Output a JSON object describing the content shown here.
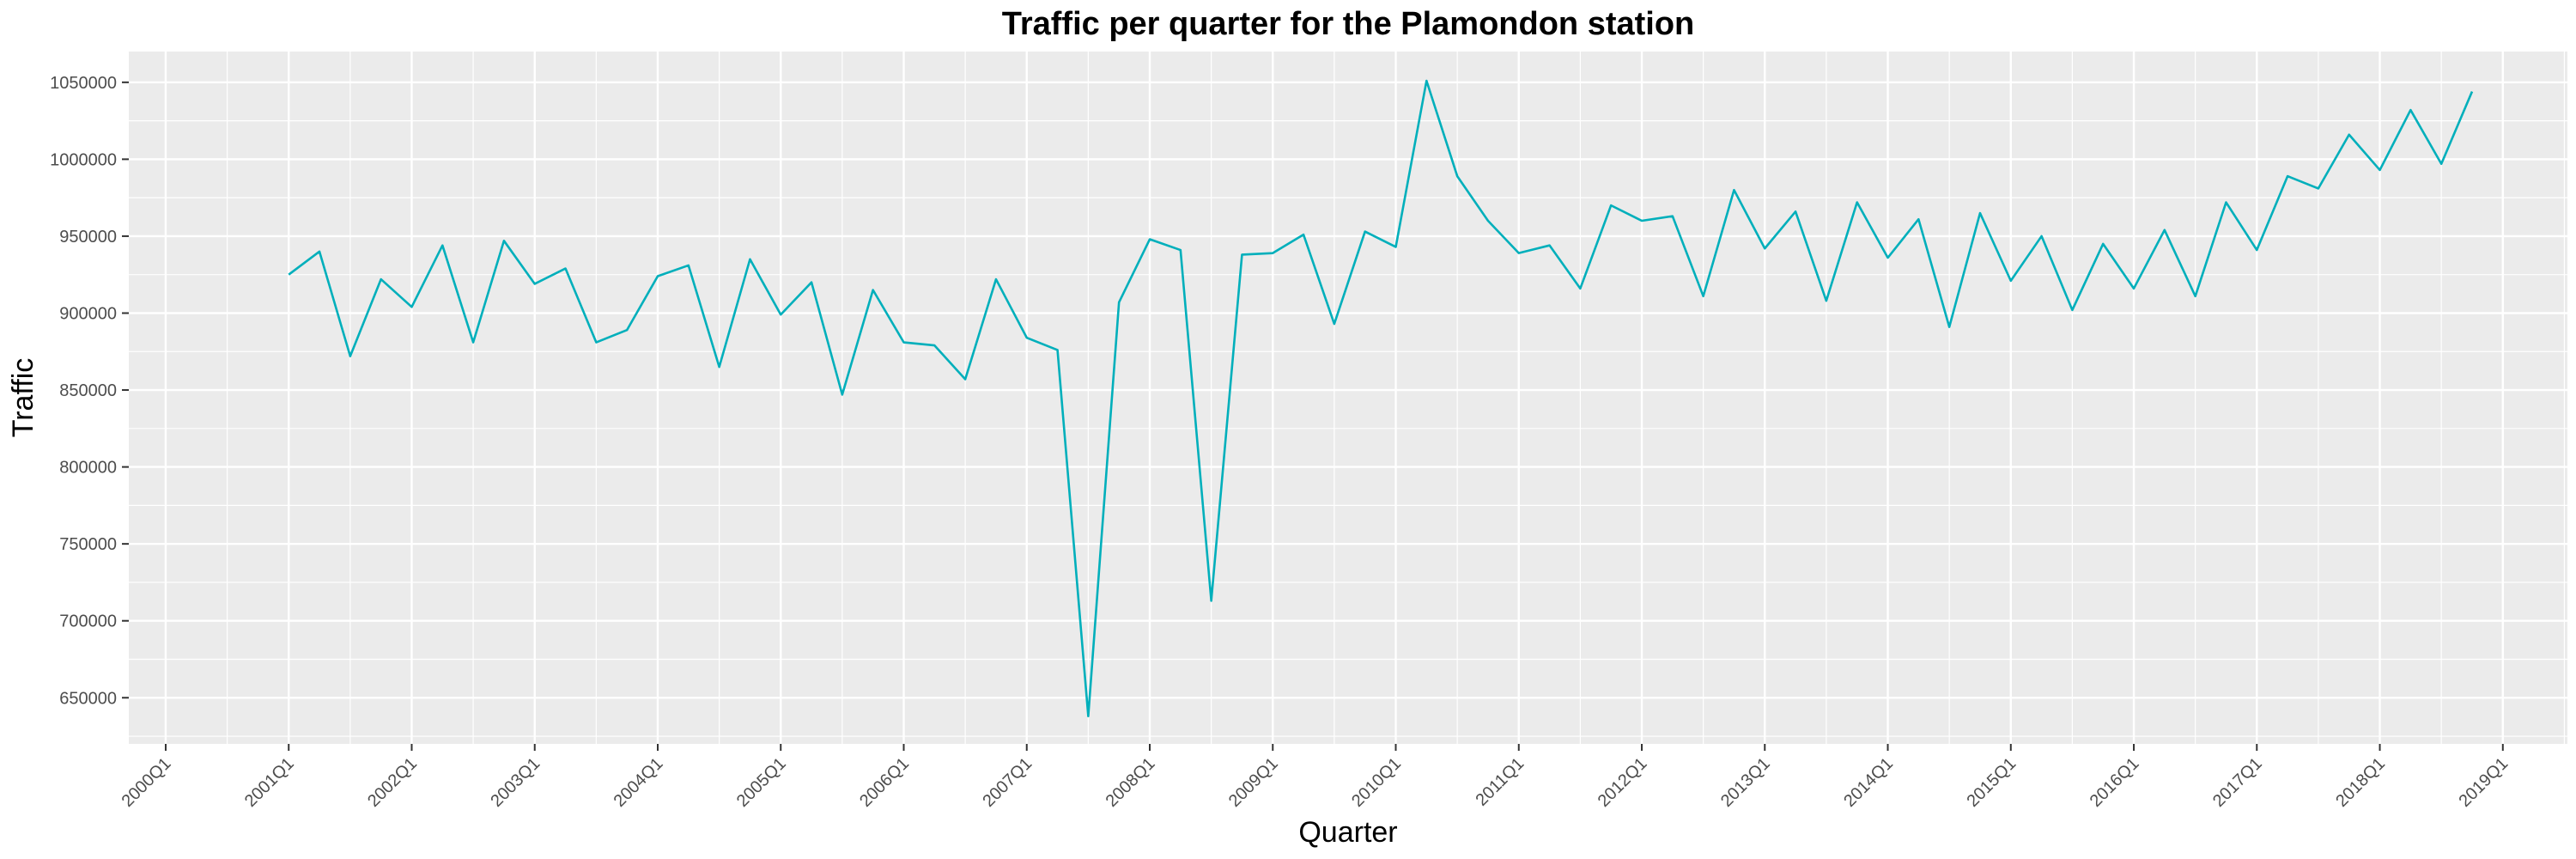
{
  "chart_data": {
    "type": "line",
    "title": "Traffic per quarter for the Plamondon station",
    "xlabel": "Quarter",
    "ylabel": "Traffic",
    "x_ticks": [
      "2000Q1",
      "2001Q1",
      "2002Q1",
      "2003Q1",
      "2004Q1",
      "2005Q1",
      "2006Q1",
      "2007Q1",
      "2008Q1",
      "2009Q1",
      "2010Q1",
      "2011Q1",
      "2012Q1",
      "2013Q1",
      "2014Q1",
      "2015Q1",
      "2016Q1",
      "2017Q1",
      "2018Q1",
      "2019Q1"
    ],
    "y_ticks": [
      650000,
      700000,
      750000,
      800000,
      850000,
      900000,
      950000,
      1000000,
      1050000
    ],
    "y_tick_labels": [
      "650000",
      "700000",
      "750000",
      "800000",
      "850000",
      "900000",
      "950000",
      "1000000",
      "1050000"
    ],
    "xlim": [
      "2000Q1",
      "2019Q2"
    ],
    "ylim": [
      620000,
      1070000
    ],
    "grid": true,
    "line_color": "#00AFBB",
    "panel_color": "#EBEBEB",
    "series": [
      {
        "x": [
          "2001Q1",
          "2001Q2",
          "2001Q3",
          "2001Q4",
          "2002Q1",
          "2002Q2",
          "2002Q3",
          "2002Q4",
          "2003Q1",
          "2003Q2",
          "2003Q3",
          "2003Q4",
          "2004Q1",
          "2004Q2",
          "2004Q3",
          "2004Q4",
          "2005Q1",
          "2005Q2",
          "2005Q3",
          "2005Q4",
          "2006Q1",
          "2006Q2",
          "2006Q3",
          "2006Q4",
          "2007Q1",
          "2007Q2",
          "2007Q3",
          "2007Q4",
          "2008Q1",
          "2008Q2",
          "2008Q3",
          "2008Q4",
          "2009Q1",
          "2009Q2",
          "2009Q3",
          "2009Q4",
          "2010Q1",
          "2010Q2",
          "2010Q3",
          "2010Q4",
          "2011Q1",
          "2011Q2",
          "2011Q3",
          "2011Q4",
          "2012Q1",
          "2012Q2",
          "2012Q3",
          "2012Q4",
          "2013Q1",
          "2013Q2",
          "2013Q3",
          "2013Q4",
          "2014Q1",
          "2014Q2",
          "2014Q3",
          "2014Q4",
          "2015Q1",
          "2015Q2",
          "2015Q3",
          "2015Q4",
          "2016Q1",
          "2016Q2",
          "2016Q3",
          "2016Q4",
          "2017Q1",
          "2017Q2",
          "2017Q3",
          "2017Q4",
          "2018Q1",
          "2018Q2",
          "2018Q3",
          "2018Q4"
        ],
        "values": [
          925000,
          940000,
          872000,
          922000,
          904000,
          944000,
          881000,
          947000,
          919000,
          929000,
          881000,
          889000,
          924000,
          931000,
          865000,
          935000,
          899000,
          920000,
          847000,
          915000,
          881000,
          879000,
          857000,
          922000,
          884000,
          876000,
          638000,
          907000,
          948000,
          941000,
          713000,
          938000,
          939000,
          951000,
          893000,
          953000,
          943000,
          1051000,
          989000,
          960000,
          939000,
          944000,
          916000,
          970000,
          960000,
          963000,
          911000,
          980000,
          942000,
          966000,
          908000,
          972000,
          936000,
          961000,
          891000,
          965000,
          921000,
          950000,
          902000,
          945000,
          916000,
          954000,
          911000,
          972000,
          941000,
          989000,
          981000,
          1016000,
          993000,
          1032000,
          997000,
          1044000
        ]
      }
    ]
  }
}
